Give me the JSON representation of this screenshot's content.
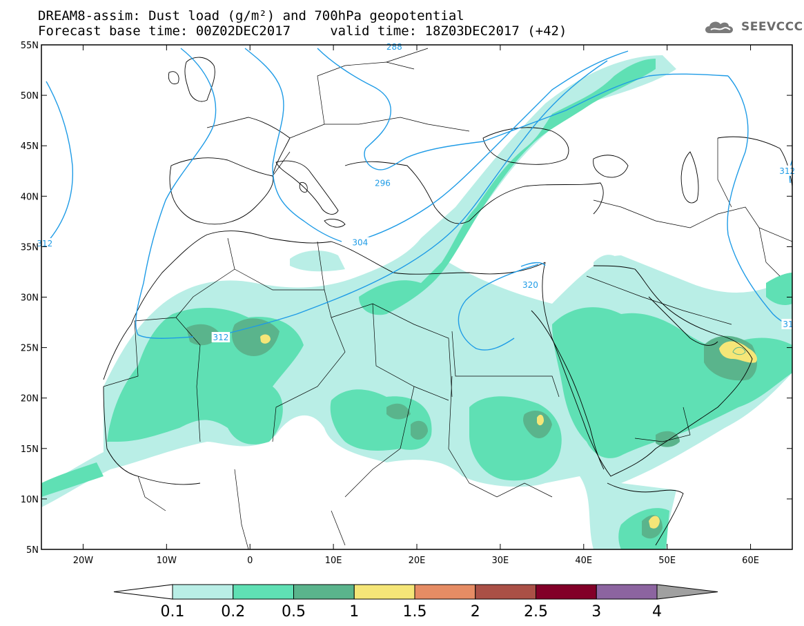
{
  "header": {
    "title_line1": "DREAM8-assim: Dust load (g/m²) and 700hPa geopotential",
    "title_line2": "Forecast base time: 00Z02DEC2017     valid time: 18Z03DEC2017 (+42)",
    "logo_text": "SEEVCCC"
  },
  "map": {
    "lon_range": [
      -25,
      65
    ],
    "lat_range": [
      5,
      55
    ],
    "lat_labels": [
      "55N",
      "50N",
      "45N",
      "40N",
      "35N",
      "30N",
      "25N",
      "20N",
      "15N",
      "10N",
      "5N"
    ],
    "lon_labels": [
      "20W",
      "10W",
      "0",
      "10E",
      "20E",
      "30E",
      "40E",
      "50E",
      "60E"
    ],
    "contour_labels": [
      {
        "text": "288",
        "lon": 17.3,
        "lat": 54.8
      },
      {
        "text": "296",
        "lon": 15.9,
        "lat": 41.3
      },
      {
        "text": "304",
        "lon": 13.2,
        "lat": 35.4
      },
      {
        "text": "312",
        "lon": -3.5,
        "lat": 26.0
      },
      {
        "text": "320",
        "lon": 33.6,
        "lat": 31.2
      },
      {
        "text": "312",
        "lon": -24.6,
        "lat": 35.3
      },
      {
        "text": "312",
        "lon": 64.4,
        "lat": 42.5
      },
      {
        "text": "31",
        "lon": 64.5,
        "lat": 27.3
      }
    ],
    "colors": {
      "geopotential_line": "#1e9be6",
      "coast": "#000000",
      "border": "#000000"
    }
  },
  "colorbar": {
    "labels": [
      "0.1",
      "0.2",
      "0.5",
      "1",
      "1.5",
      "2",
      "2.5",
      "3",
      "4"
    ],
    "colors": [
      "#b9eee6",
      "#5fe0b4",
      "#5ab48c",
      "#f5e678",
      "#e68c64",
      "#aa5046",
      "#820028",
      "#8c64a0",
      "#a0a0a0"
    ]
  }
}
